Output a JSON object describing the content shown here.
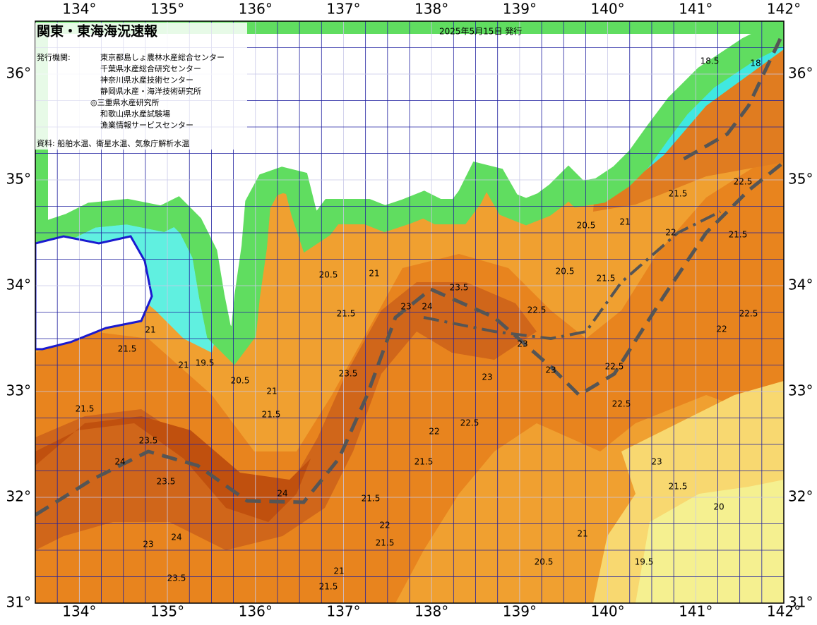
{
  "header": {
    "title": "関東・東海海況速報",
    "date": "2025年5月15日 発行",
    "issuers_label": "発行機関:",
    "issuers": [
      "東京都島しょ農林水産総合センター",
      "千葉県水産総合研究センター",
      "神奈川県水産技術センター",
      "静岡県水産・海洋技術研究所",
      "◎三重県水産研究所",
      "和歌山県水産試験場",
      "漁業情報サービスセンター"
    ],
    "source": "資料: 船舶水温、衛星水温、気象庁解析水温"
  },
  "axes": {
    "lon_labels": [
      "134°",
      "135°",
      "136°",
      "137°",
      "138°",
      "139°",
      "140°",
      "141°",
      "142°"
    ],
    "lat_labels": [
      "36°",
      "35°",
      "34°",
      "33°",
      "32°",
      "31°"
    ]
  },
  "isotherm_labels": [
    "20.5",
    "21",
    "21.5",
    "23",
    "23.5",
    "24",
    "22.5",
    "20.5",
    "21.5",
    "22",
    "22.5",
    "21.5",
    "22.5",
    "22",
    "20.5",
    "21",
    "21.5",
    "23",
    "23",
    "22.5",
    "22",
    "21.5",
    "22.5",
    "22.5",
    "24",
    "23.5",
    "24",
    "21.5",
    "23.5",
    "21",
    "21.5",
    "21.5",
    "22",
    "21.5",
    "20.5",
    "21",
    "19.5",
    "20",
    "21.5",
    "23",
    "23",
    "23.5",
    "21",
    "21.5",
    "24",
    "23.5",
    "23",
    "19.5",
    "20.5",
    "21",
    "21.5",
    "21",
    "18.5",
    "18"
  ]
}
